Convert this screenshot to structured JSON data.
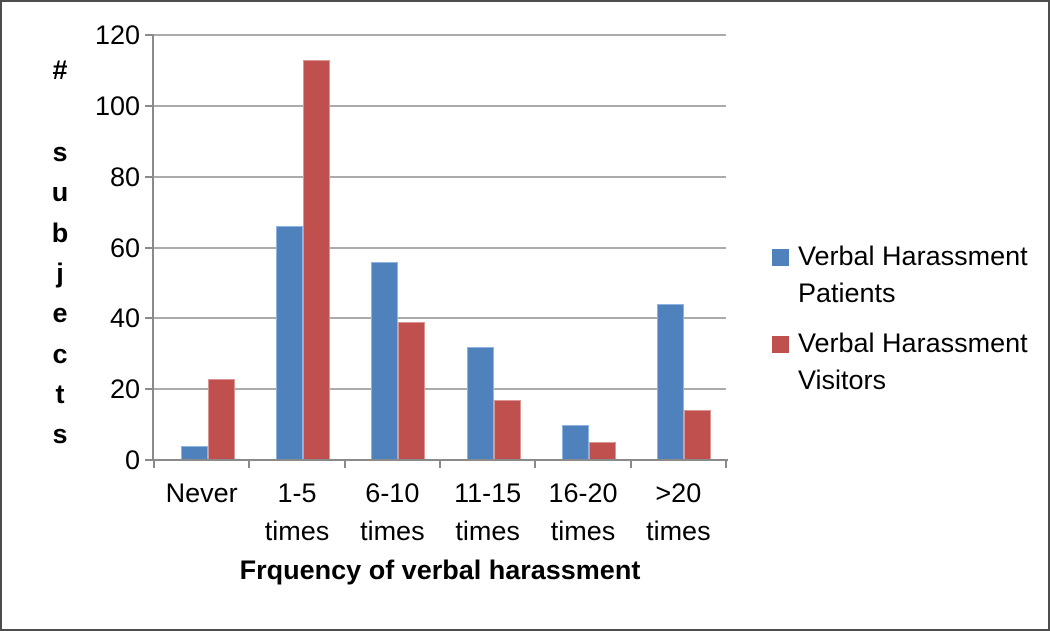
{
  "chart_data": {
    "type": "bar",
    "title": "",
    "categories": [
      "Never",
      "1-5 times",
      "6-10 times",
      "11-15 times",
      "16-20 times",
      ">20 times"
    ],
    "category_label_lines": [
      [
        "Never"
      ],
      [
        "1-5",
        "times"
      ],
      [
        "6-10",
        "times"
      ],
      [
        "11-15",
        "times"
      ],
      [
        "16-20",
        "times"
      ],
      [
        ">20",
        "times"
      ]
    ],
    "series": [
      {
        "name": "Verbal Harassment Patients",
        "label_lines": [
          "Verbal Harassment",
          "Patients"
        ],
        "color": "#4F81BD",
        "border_color": "#8EB4E3",
        "values": [
          4,
          66,
          56,
          32,
          10,
          44
        ]
      },
      {
        "name": "Verbal Harassment Visitors",
        "label_lines": [
          "Verbal Harassment",
          "Visitors"
        ],
        "color": "#C0504D",
        "border_color": "#D99694",
        "values": [
          23,
          113,
          39,
          17,
          5,
          14
        ]
      }
    ],
    "xlabel": "Frquency of verbal harassment",
    "ylabel": "# subjects",
    "ylabel_stacked_letters": [
      "#",
      "s",
      "u",
      "b",
      "j",
      "e",
      "c",
      "t",
      "s"
    ],
    "ylim": [
      0,
      120
    ],
    "yticks": [
      0,
      20,
      40,
      60,
      80,
      100,
      120
    ],
    "grid": true,
    "legend_position": "right",
    "colors": {
      "gridline": "#ABABAB",
      "axis": "#8A8A8A",
      "text": "#000000",
      "background": "#FFFFFF",
      "frame_border": "#4D4D4D"
    }
  }
}
